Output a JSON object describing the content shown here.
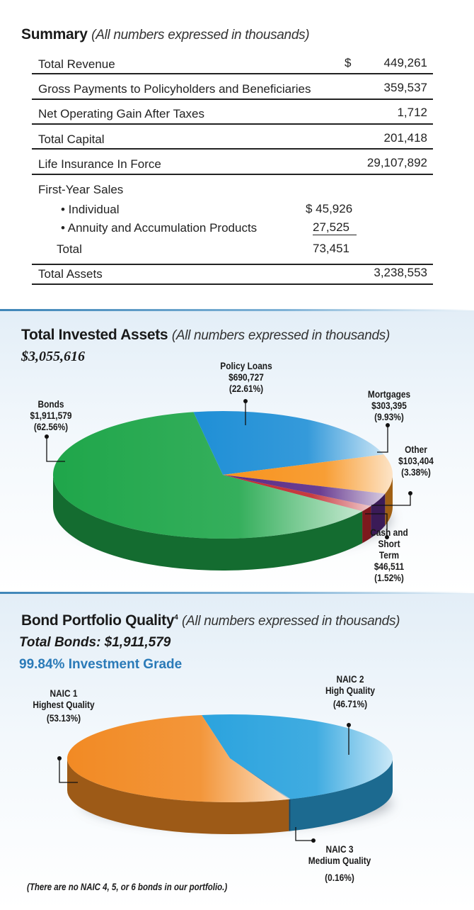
{
  "summary": {
    "title": "Summary",
    "note": "(All numbers expressed in thousands)",
    "rows": [
      {
        "label": "Total Revenue",
        "currency": "$",
        "value": "449,261"
      },
      {
        "label": "Gross Payments to Policyholders and Beneficiaries",
        "value": "359,537"
      },
      {
        "label": "Net Operating Gain After Taxes",
        "value": "1,712"
      },
      {
        "label": "Total Capital",
        "value": "201,418"
      },
      {
        "label": "Life Insurance In Force",
        "value": "29,107,892"
      }
    ],
    "first_year": {
      "label": "First-Year Sales",
      "items": [
        {
          "label": "• Individual",
          "value": "$  45,926"
        },
        {
          "label": "• Annuity and Accumulation Products",
          "value": "27,525"
        }
      ],
      "total_label": "Total",
      "total_value": "73,451"
    },
    "total_assets": {
      "label": "Total Assets",
      "value": "3,238,553"
    }
  },
  "chart_data": [
    {
      "type": "pie",
      "style": "3d",
      "title": "Total Invested Assets",
      "subtitle": "(All numbers expressed in thousands)",
      "total": "$3,055,616",
      "slices": [
        {
          "name": "Policy Loans",
          "amount": "$690,727",
          "pct_label": "(22.61%)",
          "value": 22.61,
          "color": "#1f8fd6"
        },
        {
          "name": "Mortgages",
          "amount": "$303,395",
          "pct_label": "(9.93%)",
          "value": 9.93,
          "color": "#f7931e"
        },
        {
          "name": "Other",
          "amount": "$103,404",
          "pct_label": "(3.38%)",
          "value": 3.38,
          "color": "#5b2a86"
        },
        {
          "name": "Cash and Short Term",
          "amount": "$46,511",
          "pct_label": "(1.52%)",
          "value": 1.52,
          "color": "#c1272d"
        },
        {
          "name": "Bonds",
          "amount": "$1,911,579",
          "pct_label": "(62.56%)",
          "value": 62.56,
          "color": "#1fa64a"
        }
      ]
    },
    {
      "type": "pie",
      "style": "3d",
      "title": "Bond Portfolio Quality",
      "title_sup": "4",
      "subtitle": "(All numbers expressed in thousands)",
      "total": "Total Bonds: $1,911,579",
      "highlight": "99.84% Investment Grade",
      "highlight_color": "#2a7ab8",
      "footnote": "(There are no NAIC 4, 5, or 6 bonds in our portfolio.)",
      "slices": [
        {
          "name": "NAIC 2",
          "desc": "High Quality",
          "pct_label": "(46.71%)",
          "value": 46.71,
          "color": "#2ba3de"
        },
        {
          "name": "NAIC 3",
          "desc": "Medium Quality",
          "pct_label": "(0.16%)",
          "value": 0.16,
          "color": "#1d6fa0"
        },
        {
          "name": "NAIC 1",
          "desc": "Highest Quality",
          "pct_label": "(53.13%)",
          "value": 53.13,
          "color": "#f28a24"
        }
      ]
    }
  ]
}
